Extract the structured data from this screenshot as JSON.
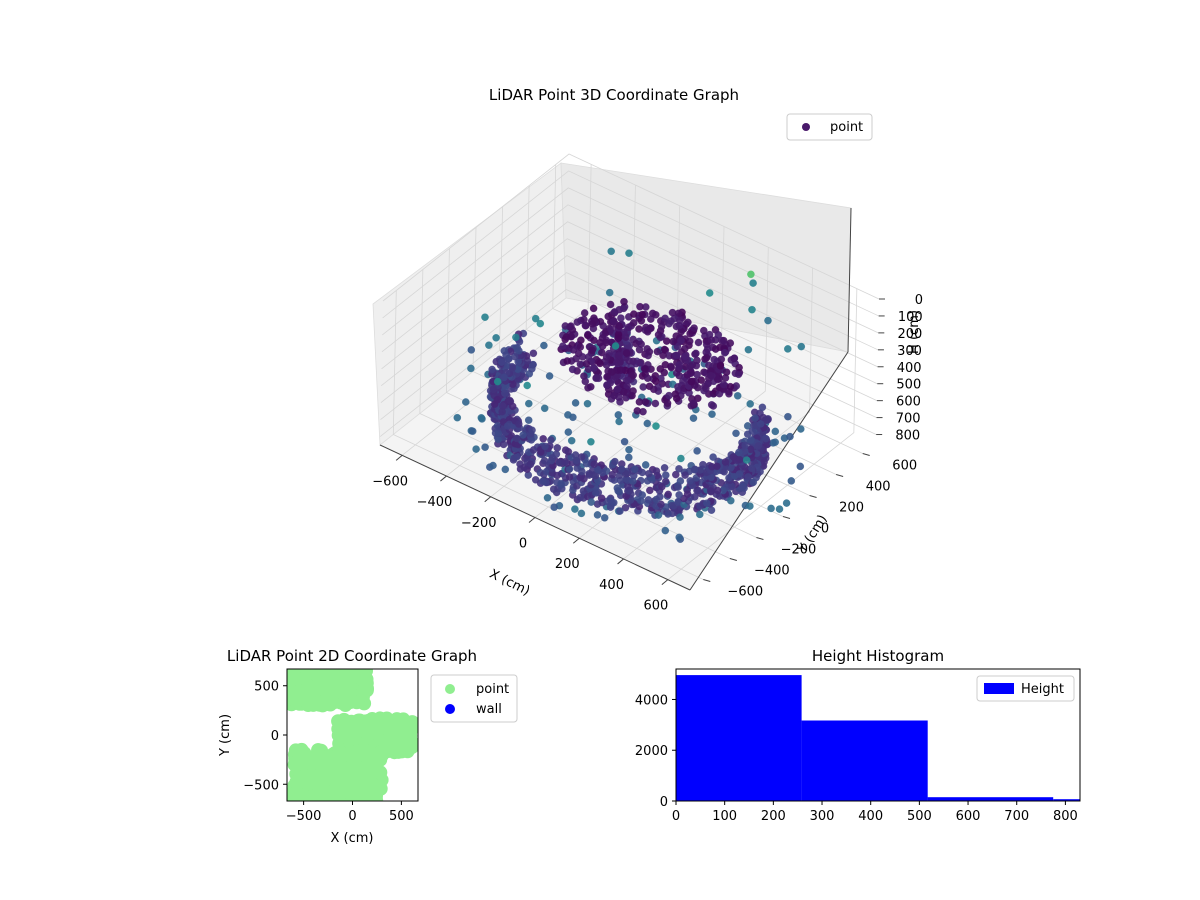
{
  "chart_data": [
    {
      "id": "scatter3d",
      "type": "scatter",
      "title": "LiDAR Point 3D Coordinate Graph",
      "xlabel": "X (cm)",
      "ylabel": "Y (cm)",
      "zlabel": "H (cm)",
      "x_ticks": [
        "−600",
        "−400",
        "−200",
        "0",
        "200",
        "400",
        "600"
      ],
      "y_ticks": [
        "−600",
        "−400",
        "−200",
        "0",
        "200",
        "400",
        "600"
      ],
      "z_ticks": [
        "0",
        "100",
        "200",
        "300",
        "400",
        "500",
        "600",
        "700",
        "800"
      ],
      "xlim": [
        -700,
        700
      ],
      "ylim": [
        -700,
        700
      ],
      "zlim": [
        0,
        850
      ],
      "z_inverted": true,
      "grid": true,
      "legend": {
        "placement": "top-right",
        "entries": [
          {
            "label": "point",
            "color": "#4a1a6b"
          }
        ]
      },
      "colormap": "viridis",
      "series": [
        {
          "name": "point",
          "clusters": [
            {
              "shape": "disk",
              "center": [
                150,
                -100
              ],
              "radius": 350,
              "h": [
                150,
                230
              ],
              "count": 420,
              "hue": [
                0.02,
                0.1
              ]
            },
            {
              "shape": "stem",
              "center": [
                -40,
                20
              ],
              "radius": 60,
              "h": [
                230,
                560
              ],
              "count": 80,
              "hue": [
                0.08,
                0.16
              ]
            },
            {
              "shape": "arc",
              "center": [
                0,
                0
              ],
              "radius": 520,
              "angle": [
                -190,
                40
              ],
              "h": [
                560,
                820
              ],
              "count": 900,
              "hue": [
                0.12,
                0.26
              ]
            },
            {
              "shape": "scatter",
              "center": [
                0,
                0
              ],
              "radius": 700,
              "h": [
                700,
                850
              ],
              "count": 130,
              "hue": [
                0.3,
                0.42
              ]
            },
            {
              "shape": "scatter",
              "center": [
                0,
                0
              ],
              "radius": 700,
              "h": [
                150,
                450
              ],
              "count": 28,
              "hue": [
                0.4,
                0.55
              ]
            }
          ]
        }
      ]
    },
    {
      "id": "scatter2d",
      "type": "scatter",
      "title": "LiDAR Point 2D Coordinate Graph",
      "xlabel": "X (cm)",
      "ylabel": "Y (cm)",
      "x_ticks": [
        -500,
        0,
        500
      ],
      "y_ticks": [
        -500,
        0,
        500
      ],
      "xlim": [
        -670,
        670
      ],
      "ylim": [
        -670,
        670
      ],
      "legend": {
        "placement": "outside-right",
        "entries": [
          {
            "label": "point",
            "color": "#90ee90"
          },
          {
            "label": "wall",
            "color": "#0000ff"
          }
        ]
      },
      "series": [
        {
          "name": "point",
          "color": "#90ee90",
          "regions": [
            {
              "x": [
                -650,
                150
              ],
              "y": [
                300,
                670
              ],
              "count": 260
            },
            {
              "x": [
                -150,
                620
              ],
              "y": [
                -180,
                170
              ],
              "count": 220
            },
            {
              "x": [
                -600,
                300
              ],
              "y": [
                -670,
                -150
              ],
              "count": 260
            },
            {
              "x": [
                -650,
                -300
              ],
              "y": [
                -670,
                -600
              ],
              "count": 20
            }
          ]
        },
        {
          "name": "wall",
          "color": "#0000ff",
          "count": 0
        }
      ]
    },
    {
      "id": "histogram",
      "type": "bar",
      "title": "Height Histogram",
      "xlabel": "",
      "ylabel": "",
      "x_ticks": [
        0,
        100,
        200,
        300,
        400,
        500,
        600,
        700,
        800
      ],
      "y_ticks": [
        0,
        2000,
        4000
      ],
      "xlim": [
        0,
        830
      ],
      "ylim": [
        0,
        5200
      ],
      "color": "#0000ff",
      "legend": {
        "placement": "top-right",
        "entries": [
          {
            "label": "Height",
            "color": "#0000ff"
          }
        ]
      },
      "bins": [
        {
          "start": 0,
          "end": 258,
          "value": 4960
        },
        {
          "start": 258,
          "end": 517,
          "value": 3170
        },
        {
          "start": 517,
          "end": 775,
          "value": 150
        },
        {
          "start": 775,
          "end": 830,
          "value": 70
        }
      ]
    }
  ]
}
